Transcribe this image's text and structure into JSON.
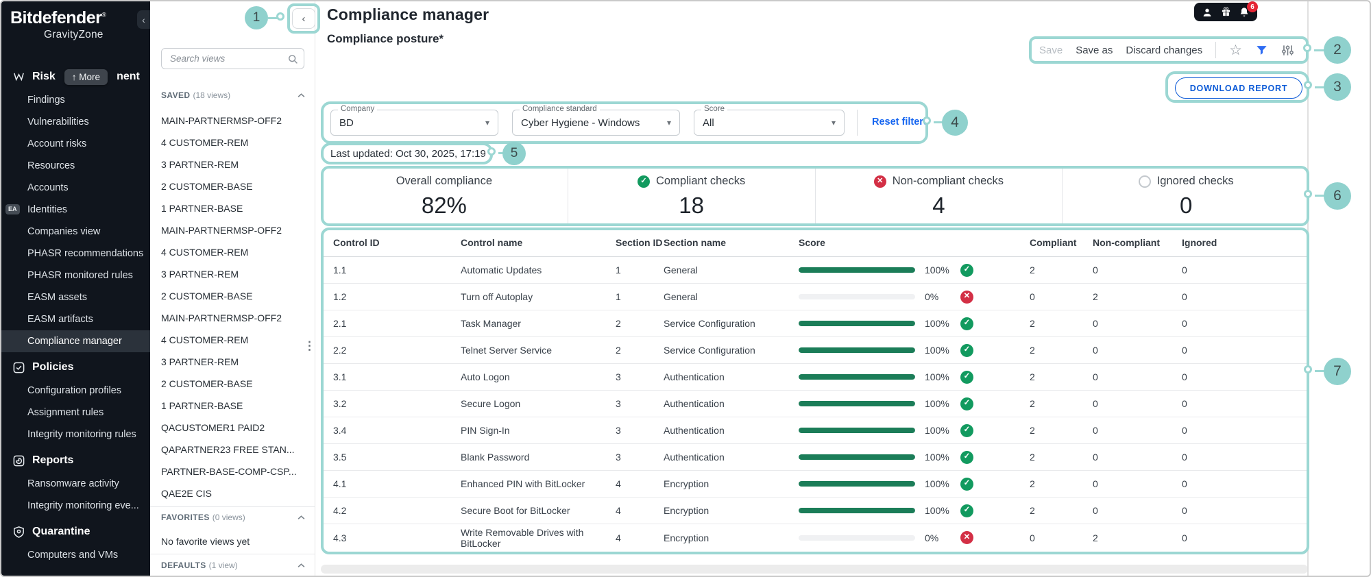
{
  "brand": {
    "name": "Bitdefender",
    "reg": "®",
    "product": "GravityZone"
  },
  "topbar": {
    "notification_badge": "6"
  },
  "sidebar": {
    "collapse_icon": "‹",
    "sections": [
      {
        "icon": "risk-management-icon",
        "label_prefix": "Risk",
        "tooltip": "↑ More",
        "label_suffix": "nent",
        "items": [
          {
            "label": "Findings"
          },
          {
            "label": "Vulnerabilities"
          },
          {
            "label": "Account risks"
          },
          {
            "label": "Resources"
          },
          {
            "label": "Accounts"
          },
          {
            "label": "Identities",
            "badge": "EA"
          },
          {
            "label": "Companies view"
          },
          {
            "label": "PHASR recommendations"
          },
          {
            "label": "PHASR monitored rules"
          },
          {
            "label": "EASM assets"
          },
          {
            "label": "EASM artifacts"
          },
          {
            "label": "Compliance manager",
            "selected": true
          }
        ]
      },
      {
        "icon": "policies-icon",
        "label": "Policies",
        "items": [
          {
            "label": "Configuration profiles"
          },
          {
            "label": "Assignment rules"
          },
          {
            "label": "Integrity monitoring rules"
          }
        ]
      },
      {
        "icon": "reports-icon",
        "label": "Reports",
        "items": [
          {
            "label": "Ransomware activity"
          },
          {
            "label": "Integrity monitoring eve..."
          }
        ]
      },
      {
        "icon": "quarantine-icon",
        "label": "Quarantine",
        "items": [
          {
            "label": "Computers and VMs"
          }
        ]
      }
    ]
  },
  "views_panel": {
    "collapse_icon": "‹",
    "search_placeholder": "Search views",
    "saved": {
      "label": "SAVED",
      "count": "(18 views)"
    },
    "favorites": {
      "label": "FAVORITES",
      "count": "(0 views)",
      "empty_text": "No favorite views yet"
    },
    "defaults": {
      "label": "DEFAULTS",
      "count": "(1 view)"
    },
    "saved_views": [
      "MAIN-PARTNERMSP-OFF2",
      "4 CUSTOMER-REM",
      "3 PARTNER-REM",
      "2 CUSTOMER-BASE",
      "1 PARTNER-BASE",
      "MAIN-PARTNERMSP-OFF2",
      "4 CUSTOMER-REM",
      "3 PARTNER-REM",
      "2 CUSTOMER-BASE",
      "MAIN-PARTNERMSP-OFF2",
      "4 CUSTOMER-REM",
      "3 PARTNER-REM",
      "2 CUSTOMER-BASE",
      "1 PARTNER-BASE",
      "QACUSTOMER1 PAID2",
      "QAPARTNER23 FREE STAN...",
      "PARTNER-BASE-COMP-CSP...",
      "QAE2E CIS"
    ]
  },
  "page": {
    "title": "Compliance manager",
    "subtitle": "Compliance posture*"
  },
  "view_toolbar": {
    "save": "Save",
    "save_as": "Save as",
    "discard": "Discard changes"
  },
  "actions": {
    "download_report": "DOWNLOAD REPORT"
  },
  "filters": {
    "company": {
      "label": "Company",
      "value": "BD"
    },
    "standard": {
      "label": "Compliance standard",
      "value": "Cyber Hygiene - Windows"
    },
    "score": {
      "label": "Score",
      "value": "All"
    },
    "reset": "Reset filters"
  },
  "last_updated": "Last updated: Oct 30, 2025, 17:19",
  "stats": [
    {
      "label": "Overall compliance",
      "value": "82%",
      "icon": "none"
    },
    {
      "label": "Compliant checks",
      "value": "18",
      "icon": "check-circle"
    },
    {
      "label": "Non-compliant checks",
      "value": "4",
      "icon": "x-circle"
    },
    {
      "label": "Ignored checks",
      "value": "0",
      "icon": "empty-circle"
    }
  ],
  "table": {
    "columns": [
      "Control ID",
      "Control name",
      "Section ID",
      "Section name",
      "Score",
      "Compliant",
      "Non-compliant",
      "Ignored"
    ],
    "rows": [
      {
        "control_id": "1.1",
        "control_name": "Automatic Updates",
        "section_id": "1",
        "section_name": "General",
        "score_percent": 100,
        "score_label": "100%",
        "status": "compliant",
        "compliant": "2",
        "non_compliant": "0",
        "ignored": "0"
      },
      {
        "control_id": "1.2",
        "control_name": "Turn off Autoplay",
        "section_id": "1",
        "section_name": "General",
        "score_percent": 0,
        "score_label": "0%",
        "status": "non_compliant",
        "compliant": "0",
        "non_compliant": "2",
        "ignored": "0"
      },
      {
        "control_id": "2.1",
        "control_name": "Task Manager",
        "section_id": "2",
        "section_name": "Service Configuration",
        "score_percent": 100,
        "score_label": "100%",
        "status": "compliant",
        "compliant": "2",
        "non_compliant": "0",
        "ignored": "0"
      },
      {
        "control_id": "2.2",
        "control_name": "Telnet Server Service",
        "section_id": "2",
        "section_name": "Service Configuration",
        "score_percent": 100,
        "score_label": "100%",
        "status": "compliant",
        "compliant": "2",
        "non_compliant": "0",
        "ignored": "0"
      },
      {
        "control_id": "3.1",
        "control_name": "Auto Logon",
        "section_id": "3",
        "section_name": "Authentication",
        "score_percent": 100,
        "score_label": "100%",
        "status": "compliant",
        "compliant": "2",
        "non_compliant": "0",
        "ignored": "0"
      },
      {
        "control_id": "3.2",
        "control_name": "Secure Logon",
        "section_id": "3",
        "section_name": "Authentication",
        "score_percent": 100,
        "score_label": "100%",
        "status": "compliant",
        "compliant": "2",
        "non_compliant": "0",
        "ignored": "0"
      },
      {
        "control_id": "3.4",
        "control_name": "PIN Sign-In",
        "section_id": "3",
        "section_name": "Authentication",
        "score_percent": 100,
        "score_label": "100%",
        "status": "compliant",
        "compliant": "2",
        "non_compliant": "0",
        "ignored": "0"
      },
      {
        "control_id": "3.5",
        "control_name": "Blank Password",
        "section_id": "3",
        "section_name": "Authentication",
        "score_percent": 100,
        "score_label": "100%",
        "status": "compliant",
        "compliant": "2",
        "non_compliant": "0",
        "ignored": "0"
      },
      {
        "control_id": "4.1",
        "control_name": "Enhanced PIN with BitLocker",
        "section_id": "4",
        "section_name": "Encryption",
        "score_percent": 100,
        "score_label": "100%",
        "status": "compliant",
        "compliant": "2",
        "non_compliant": "0",
        "ignored": "0"
      },
      {
        "control_id": "4.2",
        "control_name": "Secure Boot for BitLocker",
        "section_id": "4",
        "section_name": "Encryption",
        "score_percent": 100,
        "score_label": "100%",
        "status": "compliant",
        "compliant": "2",
        "non_compliant": "0",
        "ignored": "0"
      },
      {
        "control_id": "4.3",
        "control_name": "Write Removable Drives with BitLocker",
        "section_id": "4",
        "section_name": "Encryption",
        "score_percent": 0,
        "score_label": "0%",
        "status": "non_compliant",
        "compliant": "0",
        "non_compliant": "2",
        "ignored": "0"
      }
    ]
  },
  "annotations": {
    "callouts": [
      "1",
      "2",
      "3",
      "4",
      "5",
      "6",
      "7"
    ]
  },
  "colors": {
    "success_green": "#1b7d58",
    "badge_green": "#129a5f",
    "error_red": "#d32f45",
    "link_blue": "#1565f0",
    "button_blue": "#0d5bd7",
    "annotation_teal": "#9cd7d3",
    "sidebar_bg": "#10151d",
    "notification_red": "#e52535"
  }
}
